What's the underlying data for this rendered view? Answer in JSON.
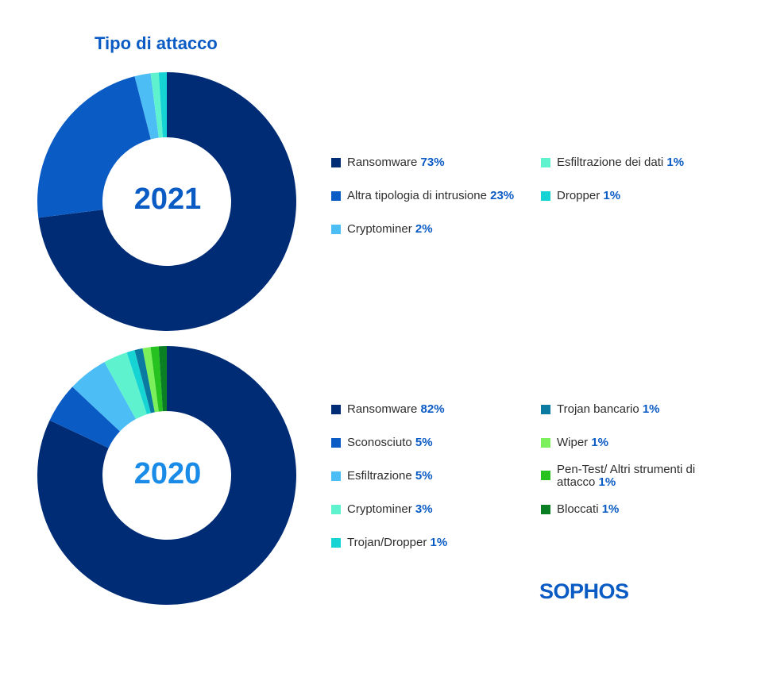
{
  "title": "Tipo di attacco",
  "logo_text": "SOPHOS",
  "chart_data": [
    {
      "type": "pie",
      "center_label": "2021",
      "categories": [
        "Ransomware",
        "Altra tipologia di intrusione",
        "Cryptominer",
        "Esfiltrazione dei dati",
        "Dropper"
      ],
      "values": [
        73,
        23,
        2,
        1,
        1
      ],
      "value_labels": [
        "73%",
        "23%",
        "2%",
        "1%",
        "1%"
      ],
      "colors": [
        "#002b75",
        "#0a5bc4",
        "#4dbef5",
        "#5ef2cf",
        "#17d4d4"
      ]
    },
    {
      "type": "pie",
      "center_label": "2020",
      "categories": [
        "Ransomware",
        "Sconosciuto",
        "Esfiltrazione",
        "Cryptominer",
        "Trojan/Dropper",
        "Trojan bancario",
        "Wiper",
        "Pen-Test/ Altri strumenti di attacco",
        "Bloccati"
      ],
      "values": [
        82,
        5,
        5,
        3,
        1,
        1,
        1,
        1,
        1
      ],
      "value_labels": [
        "82%",
        "5%",
        "5%",
        "3%",
        "1%",
        "1%",
        "1%",
        "1%",
        "1%"
      ],
      "colors": [
        "#002b75",
        "#0a5bc4",
        "#4dbef5",
        "#5ef2cf",
        "#17d4d4",
        "#0b7aa0",
        "#7cf05b",
        "#26c21f",
        "#0b7f24"
      ]
    }
  ]
}
